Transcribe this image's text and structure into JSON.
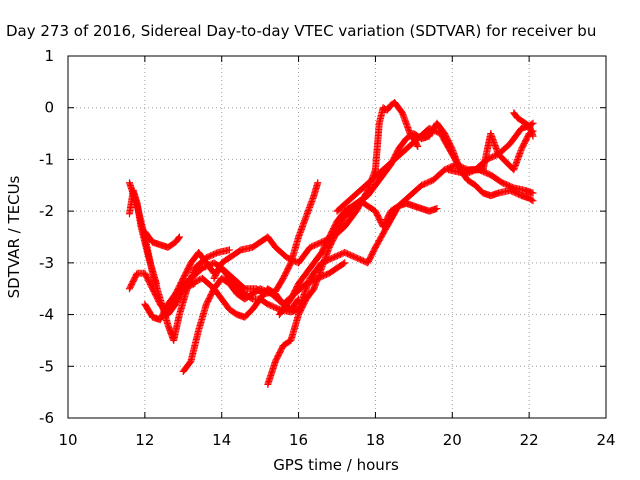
{
  "chart_data": {
    "type": "scatter",
    "title": "Day 273 of 2016, Sidereal Day-to-day VTEC variation (SDTVAR) for receiver bu",
    "xlabel": "GPS time / hours",
    "ylabel": "SDTVAR / TECUs",
    "xlim": [
      10,
      24
    ],
    "ylim": [
      -6,
      1
    ],
    "xticks": [
      10,
      12,
      14,
      16,
      18,
      20,
      22,
      24
    ],
    "yticks": [
      -6,
      -5,
      -4,
      -3,
      -2,
      -1,
      0,
      1
    ],
    "grid": true,
    "legend": "none",
    "marker": "+",
    "color": "#ff0000",
    "series": [
      {
        "x": [
          11.6,
          11.8,
          12.0,
          12.2,
          12.4,
          12.6,
          12.75,
          12.9,
          13.1,
          13.3,
          13.6,
          13.9,
          14.2
        ],
        "y": [
          -1.45,
          -1.9,
          -2.5,
          -3.2,
          -3.7,
          -4.2,
          -4.5,
          -4.0,
          -3.5,
          -3.1,
          -2.9,
          -2.8,
          -2.75
        ]
      },
      {
        "x": [
          11.6,
          11.7,
          11.8,
          11.9,
          12.0,
          12.1,
          12.3
        ],
        "y": [
          -2.05,
          -1.6,
          -1.85,
          -2.3,
          -2.6,
          -2.9,
          -3.4
        ]
      },
      {
        "x": [
          11.6,
          11.8,
          12.0,
          12.2,
          12.4,
          12.6,
          12.8,
          13.0,
          13.3
        ],
        "y": [
          -3.5,
          -3.2,
          -3.2,
          -3.5,
          -3.8,
          -4.0,
          -3.8,
          -3.5,
          -3.4
        ]
      },
      {
        "x": [
          12.0,
          12.2,
          12.4,
          12.6,
          12.8,
          12.9
        ],
        "y": [
          -2.4,
          -2.6,
          -2.65,
          -2.7,
          -2.6,
          -2.5
        ]
      },
      {
        "x": [
          12.0,
          12.2,
          12.4,
          12.6,
          12.9,
          13.2,
          13.5,
          13.8,
          14.0,
          14.3,
          14.6,
          14.9,
          15.1,
          15.4,
          15.6,
          15.8,
          16.0,
          16.2,
          16.4,
          16.5
        ],
        "y": [
          -3.8,
          -4.05,
          -4.1,
          -3.8,
          -3.5,
          -3.3,
          -3.1,
          -3.0,
          -3.1,
          -3.3,
          -3.5,
          -3.5,
          -3.6,
          -3.55,
          -3.3,
          -3.0,
          -2.5,
          -2.1,
          -1.7,
          -1.45
        ]
      },
      {
        "x": [
          12.6,
          12.8,
          13.0,
          13.2,
          13.4,
          13.6,
          13.8,
          14.0,
          14.2,
          14.4,
          14.6,
          14.8,
          15.0,
          15.2,
          15.5,
          15.8,
          16.0
        ],
        "y": [
          -3.9,
          -3.6,
          -3.3,
          -3.0,
          -2.8,
          -3.0,
          -3.2,
          -3.1,
          -3.3,
          -3.5,
          -3.6,
          -3.7,
          -3.7,
          -3.8,
          -3.9,
          -3.95,
          -3.9
        ]
      },
      {
        "x": [
          13.0,
          13.2,
          13.4,
          13.6,
          13.8,
          14.0,
          14.2,
          14.4,
          14.6,
          14.8,
          15.0,
          15.3,
          15.6,
          15.9,
          16.2,
          16.5,
          16.8,
          17.0,
          17.2
        ],
        "y": [
          -5.1,
          -4.9,
          -4.3,
          -3.8,
          -3.5,
          -3.3,
          -3.4,
          -3.6,
          -3.7,
          -3.6,
          -3.5,
          -3.6,
          -3.8,
          -3.6,
          -3.4,
          -3.3,
          -3.2,
          -3.1,
          -3.0
        ]
      },
      {
        "x": [
          13.2,
          13.5,
          13.8,
          14.0,
          14.2,
          14.4,
          14.6,
          14.8,
          15.0,
          15.2,
          15.4,
          15.6,
          15.8,
          16.0
        ],
        "y": [
          -3.4,
          -3.3,
          -3.5,
          -3.7,
          -3.9,
          -4.0,
          -4.05,
          -3.9,
          -3.7,
          -3.5,
          -3.6,
          -3.8,
          -3.9,
          -3.7
        ]
      },
      {
        "x": [
          13.8,
          14.0,
          14.2,
          14.5,
          14.8,
          15.0,
          15.2,
          15.4,
          15.7,
          16.0,
          16.3,
          16.6,
          16.9,
          17.2,
          17.5,
          17.8,
          18.0,
          18.1,
          18.2,
          18.3,
          18.4,
          18.5,
          18.6,
          18.7,
          18.8,
          18.9,
          19.0,
          19.1
        ],
        "y": [
          -3.3,
          -3.0,
          -2.9,
          -2.75,
          -2.7,
          -2.6,
          -2.5,
          -2.7,
          -2.9,
          -3.0,
          -2.7,
          -2.6,
          -2.5,
          -2.3,
          -2.0,
          -1.6,
          -1.2,
          -0.3,
          0.0,
          -0.05,
          0.05,
          0.1,
          0.0,
          -0.1,
          -0.3,
          -0.5,
          -0.6,
          -0.75
        ]
      },
      {
        "x": [
          15.2,
          15.4,
          15.6,
          15.8,
          16.0,
          16.2,
          16.4,
          16.6,
          16.8,
          17.0,
          17.2,
          17.4,
          17.6,
          17.8,
          18.0,
          18.2,
          18.4,
          18.6,
          18.8,
          19.0,
          19.2,
          19.4,
          19.6,
          19.8,
          20.0,
          20.2,
          20.4,
          20.6,
          20.8,
          21.0,
          21.2,
          21.5,
          21.8,
          22.0,
          22.1
        ],
        "y": [
          -5.35,
          -4.9,
          -4.6,
          -4.5,
          -4.0,
          -3.7,
          -3.5,
          -3.1,
          -2.7,
          -2.4,
          -2.1,
          -2.0,
          -1.8,
          -1.7,
          -1.5,
          -1.3,
          -1.1,
          -0.8,
          -0.6,
          -0.5,
          -0.6,
          -0.55,
          -0.3,
          -0.5,
          -0.8,
          -1.2,
          -1.4,
          -1.5,
          -1.65,
          -1.7,
          -1.65,
          -1.6,
          -1.7,
          -1.75,
          -1.8
        ]
      },
      {
        "x": [
          15.5,
          15.8,
          16.0,
          16.2,
          16.4,
          16.6,
          16.8,
          17.0,
          17.2,
          17.4,
          17.6,
          17.8,
          18.0,
          18.2,
          18.4,
          18.6,
          18.8,
          19.0,
          19.2,
          19.4,
          19.6
        ],
        "y": [
          -4.0,
          -3.7,
          -3.4,
          -3.2,
          -3.0,
          -2.8,
          -2.5,
          -2.2,
          -2.0,
          -1.9,
          -1.8,
          -1.9,
          -2.0,
          -2.3,
          -2.0,
          -1.9,
          -1.85,
          -1.9,
          -1.95,
          -2.0,
          -1.95
        ]
      },
      {
        "x": [
          16.0,
          16.3,
          16.6,
          16.9,
          17.2,
          17.5,
          17.8,
          18.0,
          18.3,
          18.6,
          18.9,
          19.2,
          19.5,
          19.8,
          20.1,
          20.4,
          20.7,
          21.0,
          21.3,
          21.6,
          21.9,
          22.1
        ],
        "y": [
          -3.9,
          -3.3,
          -3.0,
          -2.9,
          -2.8,
          -2.9,
          -3.0,
          -2.7,
          -2.3,
          -1.9,
          -1.7,
          -1.5,
          -1.4,
          -1.2,
          -1.1,
          -1.2,
          -1.2,
          -1.3,
          -1.45,
          -1.55,
          -1.6,
          -1.65
        ]
      },
      {
        "x": [
          17.0,
          17.3,
          17.6,
          17.9,
          18.2,
          18.5,
          18.8,
          19.1,
          19.4,
          19.7,
          20.0,
          20.3,
          20.6,
          20.9,
          21.2,
          21.5,
          21.8,
          22.0,
          22.1
        ],
        "y": [
          -2.0,
          -1.8,
          -1.6,
          -1.4,
          -1.2,
          -1.0,
          -0.8,
          -0.6,
          -0.4,
          -0.5,
          -0.9,
          -1.3,
          -1.2,
          -1.0,
          -0.9,
          -0.7,
          -0.4,
          -0.35,
          -0.3
        ]
      },
      {
        "x": [
          19.9,
          20.2,
          20.5,
          20.8,
          21.0,
          21.2,
          21.4,
          21.6,
          21.8,
          22.0,
          22.1
        ],
        "y": [
          -1.2,
          -1.25,
          -1.2,
          -1.2,
          -0.5,
          -0.9,
          -1.05,
          -1.2,
          -0.8,
          -0.5,
          -0.45
        ]
      },
      {
        "x": [
          21.6,
          21.7,
          21.8,
          21.9,
          22.0,
          22.1
        ],
        "y": [
          -0.1,
          -0.2,
          -0.25,
          -0.3,
          -0.35,
          -0.55
        ]
      }
    ]
  }
}
